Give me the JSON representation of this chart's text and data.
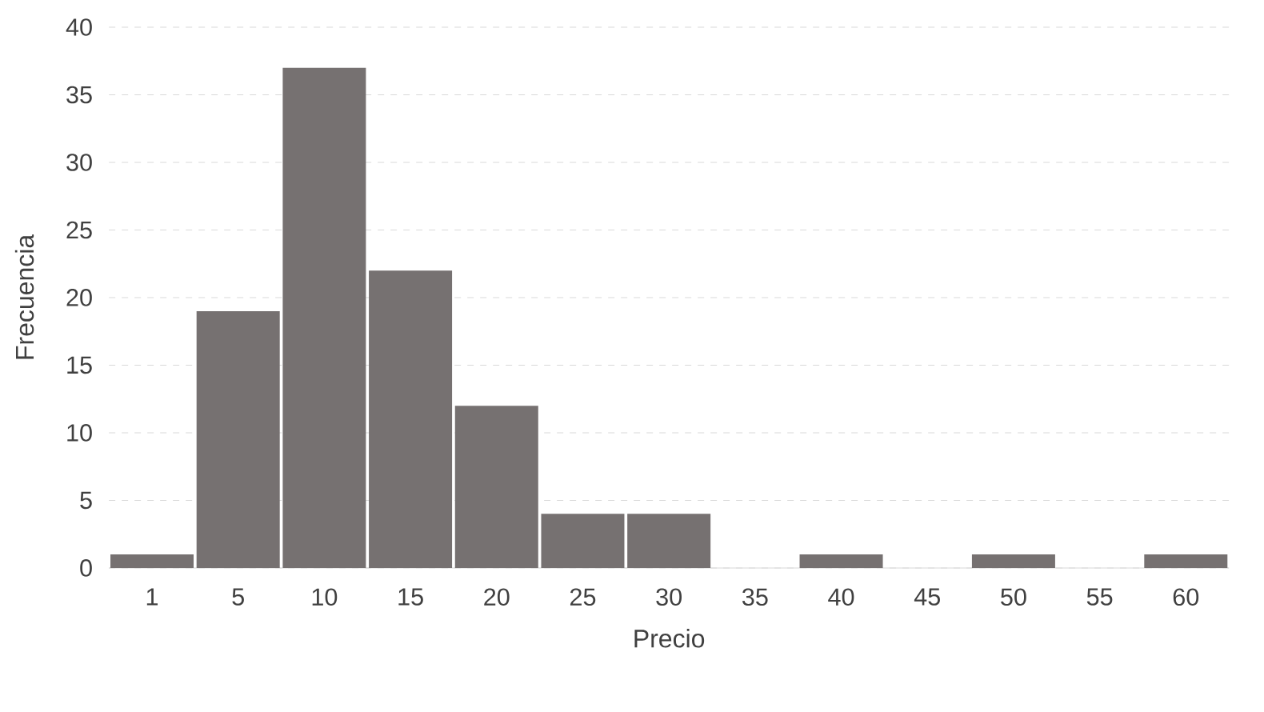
{
  "chart_data": {
    "type": "bar",
    "xlabel": "Precio",
    "ylabel": "Frecuencia",
    "categories": [
      "1",
      "5",
      "10",
      "15",
      "20",
      "25",
      "30",
      "35",
      "40",
      "45",
      "50",
      "55",
      "60"
    ],
    "values": [
      1,
      19,
      37,
      22,
      12,
      4,
      4,
      0,
      1,
      0,
      1,
      0,
      1
    ],
    "color": "#767171",
    "ylim": [
      0,
      40
    ],
    "yticks": [
      0,
      5,
      10,
      15,
      20,
      25,
      30,
      35,
      40
    ],
    "grid": "y"
  }
}
